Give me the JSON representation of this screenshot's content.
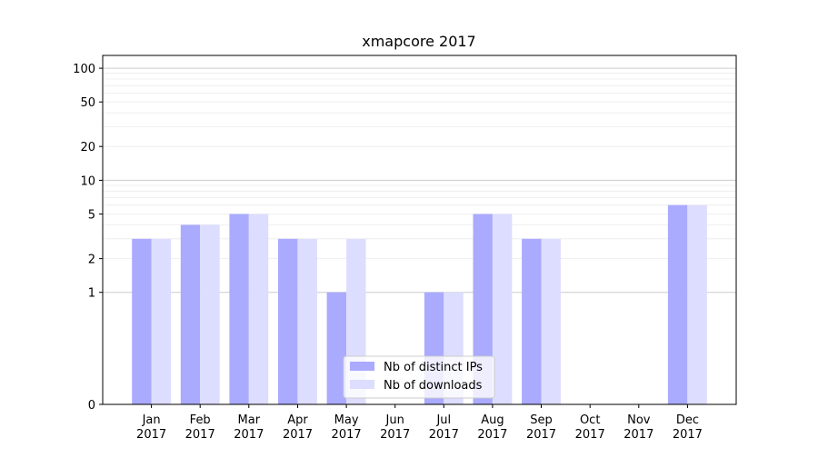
{
  "chart_data": {
    "type": "bar",
    "title": "xmapcore 2017",
    "xlabel": "",
    "ylabel": "",
    "y_scale": "symlog",
    "ylim": [
      0,
      130
    ],
    "y_ticks": [
      0,
      1,
      2,
      5,
      10,
      20,
      50,
      100
    ],
    "grid": true,
    "legend_position": "lower center",
    "categories": [
      "Jan\n2017",
      "Feb\n2017",
      "Mar\n2017",
      "Apr\n2017",
      "May\n2017",
      "Jun\n2017",
      "Jul\n2017",
      "Aug\n2017",
      "Sep\n2017",
      "Oct\n2017",
      "Nov\n2017",
      "Dec\n2017"
    ],
    "series": [
      {
        "name": "Nb of distinct IPs",
        "color": "#aaaaff",
        "values": [
          3,
          4,
          5,
          3,
          1,
          0,
          1,
          5,
          3,
          0,
          0,
          6
        ]
      },
      {
        "name": "Nb of downloads",
        "color": "#ddddff",
        "values": [
          3,
          4,
          5,
          3,
          3,
          0,
          1,
          5,
          3,
          0,
          0,
          6
        ]
      }
    ]
  }
}
